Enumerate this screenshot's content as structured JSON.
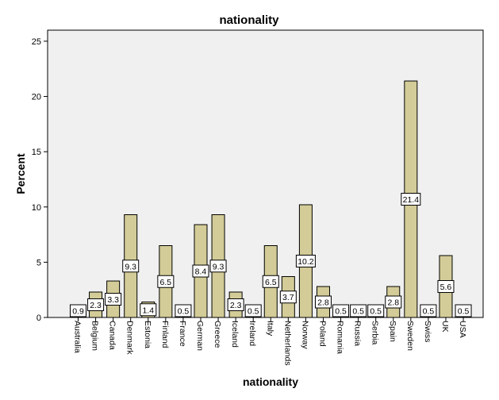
{
  "chart_data": {
    "type": "bar",
    "title": "nationality",
    "xlabel": "nationality",
    "ylabel": "Percent",
    "ylim": [
      0,
      26
    ],
    "yticks": [
      0,
      5,
      10,
      15,
      20,
      25
    ],
    "categories": [
      "Australia",
      "Belgium",
      "Canada",
      "Denmark",
      "Estonia",
      "Finland",
      "France",
      "German",
      "Greece",
      "Iceland",
      "Ireland",
      "Italy",
      "Netherlands",
      "Norway",
      "Poland",
      "Romania",
      "Russia",
      "Serbia",
      "Spain",
      "Sweden",
      "Swiss",
      "UK",
      "USA"
    ],
    "values": [
      0.9,
      2.3,
      3.3,
      9.3,
      1.4,
      6.5,
      0.5,
      8.4,
      9.3,
      2.3,
      0.5,
      6.5,
      3.7,
      10.2,
      2.8,
      0.5,
      0.5,
      0.5,
      2.8,
      21.4,
      0.5,
      5.6,
      0.5
    ],
    "data_labels": [
      "0.9",
      "2.3",
      "3.3",
      "9.3",
      "1.4",
      "6.5",
      "0.5",
      "8.4",
      "9.3",
      "2.3",
      "0.5",
      "6.5",
      "3.7",
      "10.2",
      "2.8",
      "0.5",
      "0.5",
      "0.5",
      "2.8",
      "21.4",
      "0.5",
      "5.6",
      "0.5"
    ],
    "colors": {
      "bar_fill": "#d3cc98",
      "bar_stroke": "#000000",
      "plot_bg": "#f0f0f0"
    },
    "grid": false,
    "legend": "none"
  }
}
